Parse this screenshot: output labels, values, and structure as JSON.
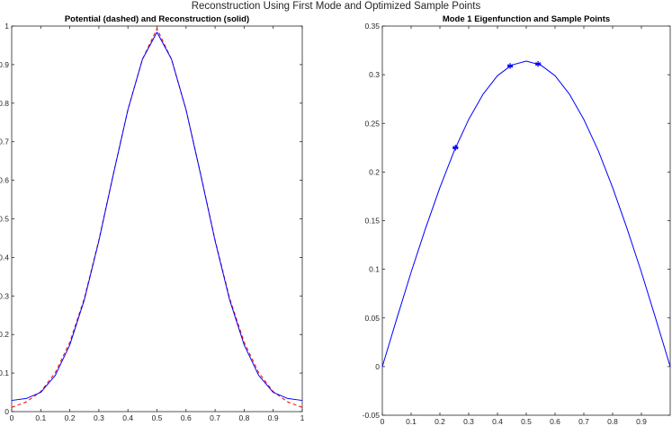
{
  "figure": {
    "suptitle": "Reconstruction Using First Mode and Optimized Sample Points",
    "background": "#ffffff"
  },
  "chart_data": [
    {
      "type": "line",
      "title": "Potential (dashed) and Reconstruction (solid)",
      "xlabel": "",
      "ylabel": "",
      "xlim": [
        0,
        1
      ],
      "ylim": [
        0,
        1
      ],
      "xticks": [
        0,
        0.1,
        0.2,
        0.3,
        0.4,
        0.5,
        0.6,
        0.7,
        0.8,
        0.9,
        1
      ],
      "yticks": [
        0,
        0.1,
        0.2,
        0.3,
        0.4,
        0.5,
        0.6,
        0.7,
        0.8,
        0.9,
        1
      ],
      "xtick_labels": [
        "0",
        "0.1",
        "0.2",
        "0.3",
        "0.4",
        "0.5",
        "0.6",
        "0.7",
        "0.8",
        "0.9",
        "1"
      ],
      "ytick_labels": [
        "0",
        "0.1",
        "0.2",
        "0.3",
        "0.4",
        "0.5",
        "0.6",
        "0.7",
        "0.8",
        "0.9",
        "1"
      ],
      "grid": false,
      "series": [
        {
          "style": "dashed",
          "color": "#ff0000",
          "x": [
            0,
            0.05,
            0.1,
            0.15,
            0.2,
            0.25,
            0.3,
            0.35,
            0.4,
            0.45,
            0.5,
            0.55,
            0.6,
            0.65,
            0.7,
            0.75,
            0.8,
            0.85,
            0.9,
            0.95,
            1
          ],
          "y": [
            0.011,
            0.025,
            0.052,
            0.101,
            0.18,
            0.294,
            0.445,
            0.617,
            0.783,
            0.914,
            0.993,
            0.914,
            0.783,
            0.617,
            0.445,
            0.294,
            0.18,
            0.101,
            0.052,
            0.025,
            0.011
          ]
        },
        {
          "style": "solid",
          "color": "#0000ff",
          "x": [
            0,
            0.05,
            0.1,
            0.15,
            0.2,
            0.25,
            0.3,
            0.35,
            0.4,
            0.45,
            0.5,
            0.55,
            0.6,
            0.65,
            0.7,
            0.75,
            0.8,
            0.85,
            0.9,
            0.95,
            1
          ],
          "y": [
            0.029,
            0.034,
            0.05,
            0.094,
            0.173,
            0.29,
            0.443,
            0.616,
            0.783,
            0.914,
            0.984,
            0.914,
            0.783,
            0.616,
            0.443,
            0.29,
            0.173,
            0.094,
            0.05,
            0.034,
            0.029
          ]
        }
      ]
    },
    {
      "type": "line",
      "title": "Mode 1 Eigenfunction and Sample Points",
      "xlabel": "",
      "ylabel": "",
      "xlim": [
        0,
        1
      ],
      "ylim": [
        -0.05,
        0.35
      ],
      "xticks": [
        0,
        0.1,
        0.2,
        0.3,
        0.4,
        0.5,
        0.6,
        0.7,
        0.8,
        0.9
      ],
      "yticks": [
        -0.05,
        0,
        0.05,
        0.1,
        0.15,
        0.2,
        0.25,
        0.3,
        0.35
      ],
      "xtick_labels": [
        "0",
        "0.1",
        "0.2",
        "0.3",
        "0.4",
        "0.5",
        "0.6",
        "0.7",
        "0.8",
        "0.9"
      ],
      "ytick_labels": [
        "-0.05",
        "0",
        "0.05",
        "0.1",
        "0.15",
        "0.2",
        "0.25",
        "0.3",
        "0.35"
      ],
      "grid": false,
      "series": [
        {
          "style": "solid",
          "color": "#0000ff",
          "x": [
            0,
            0.05,
            0.1,
            0.15,
            0.2,
            0.25,
            0.3,
            0.35,
            0.4,
            0.45,
            0.5,
            0.55,
            0.6,
            0.65,
            0.7,
            0.75,
            0.8,
            0.85,
            0.9,
            0.95,
            1
          ],
          "y": [
            0,
            0.049,
            0.097,
            0.142,
            0.184,
            0.222,
            0.254,
            0.28,
            0.299,
            0.31,
            0.314,
            0.31,
            0.299,
            0.28,
            0.254,
            0.222,
            0.184,
            0.142,
            0.097,
            0.049,
            0
          ]
        }
      ],
      "markers": {
        "symbol": "*",
        "color": "#0000ff",
        "x": [
          0.254,
          0.444,
          0.541
        ],
        "y": [
          0.225,
          0.309,
          0.311
        ]
      }
    }
  ]
}
